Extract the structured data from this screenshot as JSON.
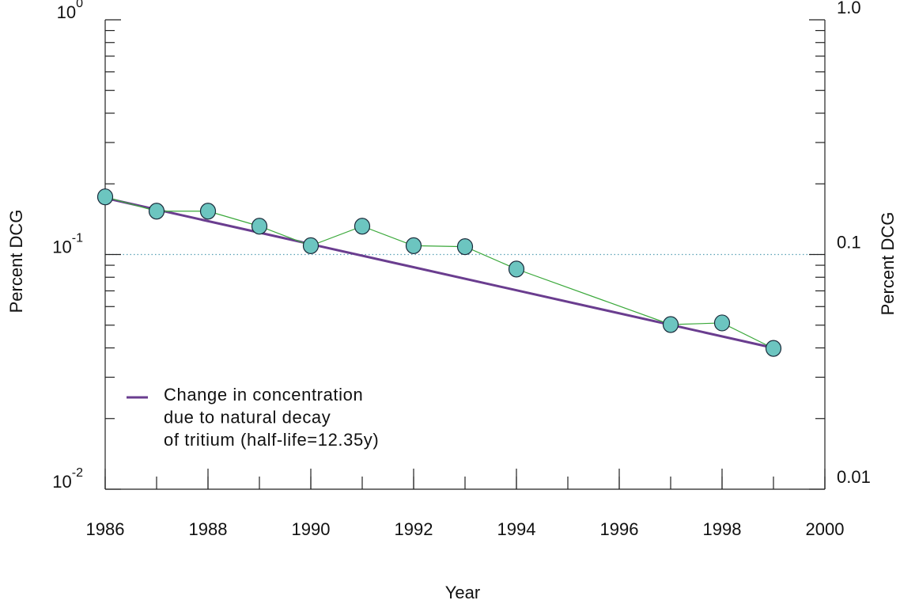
{
  "chart_data": {
    "type": "line",
    "ylabel": "Percent DCG",
    "y2label": "Percent DCG",
    "xlabel": "Year",
    "xlim": [
      1986,
      2000
    ],
    "xticks": [
      1986,
      1988,
      1990,
      1992,
      1994,
      1996,
      1998,
      2000
    ],
    "ylim": [
      0.01,
      1
    ],
    "yscale": "log",
    "yticks": [
      {
        "value": 0.01,
        "label": "10",
        "exponent": "-2"
      },
      {
        "value": 0.1,
        "label": "10",
        "exponent": "-1"
      },
      {
        "value": 1,
        "label": "10",
        "exponent": "0"
      }
    ],
    "y2lim": [
      0.01,
      1
    ],
    "y2ticks": [
      0.01,
      0.1,
      {
        "value": 1,
        "label": "1.0"
      }
    ],
    "minor_ticks": true,
    "reference_line": {
      "value": 0.1,
      "color": "#5aa0b4"
    },
    "series": [
      {
        "color": "#3aa83a",
        "marker_color": "#6cc5c0",
        "x": [
          1986,
          1987,
          1988,
          1989,
          1990,
          1991,
          1992,
          1993,
          1994,
          1997,
          1998,
          1999
        ],
        "values": [
          0.176,
          0.153,
          0.153,
          0.132,
          0.109,
          0.132,
          0.109,
          0.108,
          0.0867,
          0.0503,
          0.0511,
          0.0398
        ]
      },
      {
        "name": [
          "Change in concentration",
          "due to natural decay",
          "of tritium (half-life=12.35y)"
        ],
        "color": "#6a3d8f",
        "x": [
          1986,
          1999
        ],
        "values": [
          0.174,
          0.04
        ]
      }
    ]
  }
}
